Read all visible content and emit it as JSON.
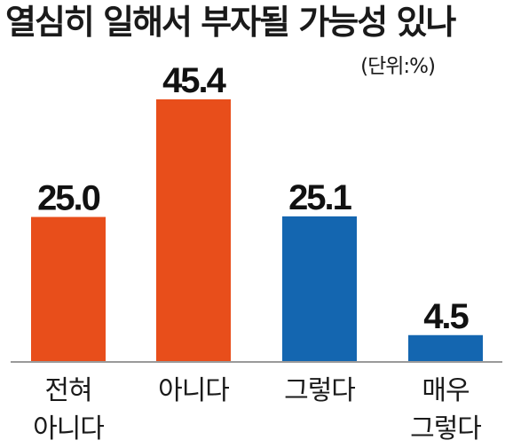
{
  "chart_data": {
    "type": "bar",
    "title": "열심히 일해서 부자될 가능성 있나",
    "unit_note": "(단위:%)",
    "categories": [
      [
        "전혀",
        "아니다"
      ],
      [
        "아니다"
      ],
      [
        "그렇다"
      ],
      [
        "매우",
        "그렇다"
      ]
    ],
    "values": [
      25.0,
      45.4,
      25.1,
      4.5
    ],
    "value_labels": [
      "25.0",
      "45.4",
      "25.1",
      "4.5"
    ],
    "bar_colors": [
      "#e84e1b",
      "#e84e1b",
      "#1466b0",
      "#1466b0"
    ],
    "ylim": [
      0,
      45.4
    ],
    "grid": false,
    "legend": "none"
  }
}
